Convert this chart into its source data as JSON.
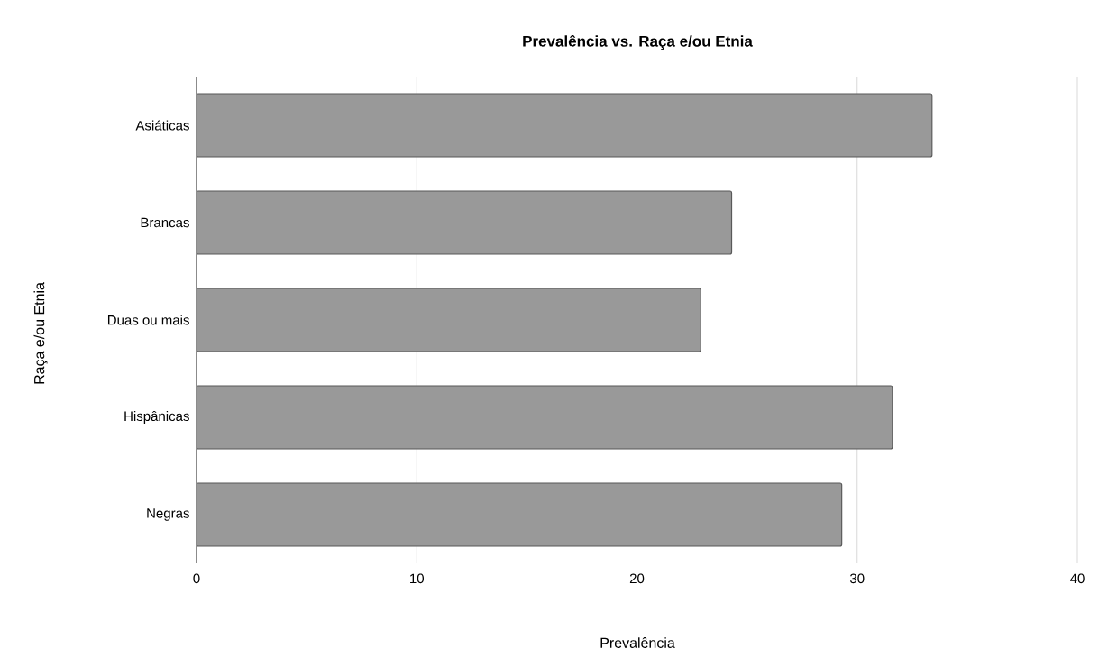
{
  "chart_data": {
    "type": "bar",
    "orientation": "horizontal",
    "title": "Prevalência vs. Raça e/ou Etnia",
    "xlabel": "Prevalência",
    "ylabel": "Raça e/ou Etnia",
    "categories": [
      "Asiáticas",
      "Brancas",
      "Duas ou mais",
      "Hispânicas",
      "Negras"
    ],
    "values": [
      33.4,
      24.3,
      22.9,
      31.6,
      29.3
    ],
    "color": "#999999",
    "xlim": [
      0,
      40
    ],
    "xticks": [
      0,
      10,
      20,
      30,
      40
    ],
    "grid": "x"
  }
}
